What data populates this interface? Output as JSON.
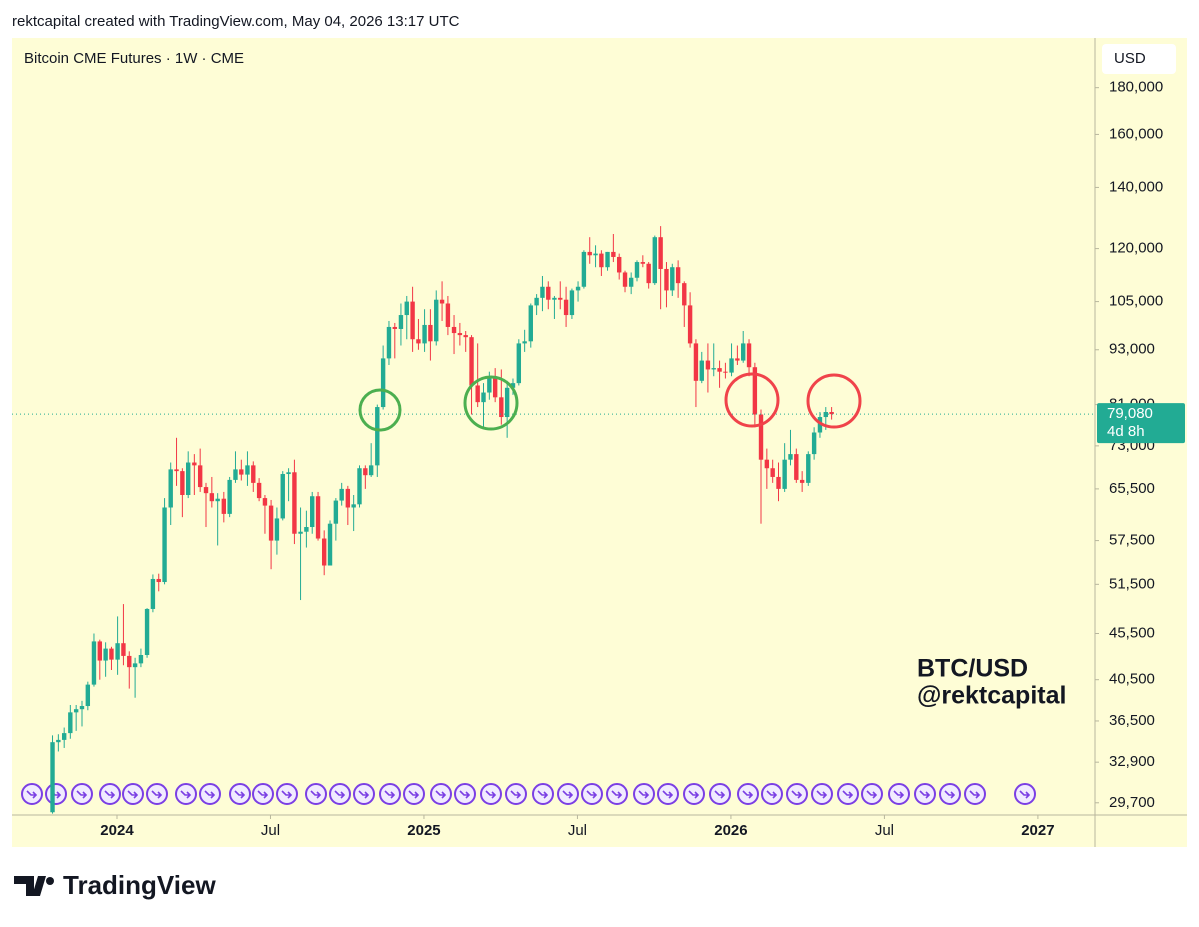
{
  "header": "rektcapital created with TradingView.com, May 04, 2026 13:17 UTC",
  "footer": "TradingView",
  "chart_data": {
    "type": "candlestick",
    "title": "Bitcoin CME Futures · 1W · CME",
    "currency": "USD",
    "annotation": [
      "BTC/USD",
      "@rektcapital"
    ],
    "last_price": {
      "value": 79080,
      "label": "79,080"
    },
    "countdown": "4d 8h",
    "up_color": "#22ab94",
    "down_color": "#f23645",
    "log_scale": true,
    "xlim": [
      2023.658,
      2027.186
    ],
    "ylim": [
      28800,
      204000
    ],
    "xticks": [
      2024,
      {
        "value": 2024.5,
        "label": "Jul"
      },
      2025,
      {
        "value": 2025.5,
        "label": "Jul"
      },
      2026,
      {
        "value": 2026.5,
        "label": "Jul"
      },
      2027
    ],
    "yticks": [
      {
        "value": 29700,
        "label": "29,700"
      },
      {
        "value": 32900,
        "label": "32,900"
      },
      {
        "value": 36500,
        "label": "36,500"
      },
      {
        "value": 40500,
        "label": "40,500"
      },
      {
        "value": 45500,
        "label": "45,500"
      },
      {
        "value": 51500,
        "label": "51,500"
      },
      {
        "value": 57500,
        "label": "57,500"
      },
      {
        "value": 65500,
        "label": "65,500"
      },
      {
        "value": 73000,
        "label": "73,000"
      },
      {
        "value": 81000,
        "label": "81,000"
      },
      {
        "value": 93000,
        "label": "93,000"
      },
      {
        "value": 105000,
        "label": "105,000"
      },
      {
        "value": 120000,
        "label": "120,000"
      },
      {
        "value": 140000,
        "label": "140,000"
      },
      {
        "value": 160000,
        "label": "160,000"
      },
      {
        "value": 180000,
        "label": "180,000"
      }
    ],
    "x": [
      2023.79,
      2023.809,
      2023.828,
      2023.848,
      2023.867,
      2023.886,
      2023.905,
      2023.925,
      2023.944,
      2023.963,
      2023.982,
      2024.002,
      2024.021,
      2024.04,
      2024.059,
      2024.078,
      2024.098,
      2024.117,
      2024.136,
      2024.155,
      2024.175,
      2024.194,
      2024.213,
      2024.232,
      2024.252,
      2024.271,
      2024.29,
      2024.309,
      2024.328,
      2024.348,
      2024.367,
      2024.386,
      2024.405,
      2024.425,
      2024.444,
      2024.463,
      2024.482,
      2024.502,
      2024.521,
      2024.54,
      2024.559,
      2024.578,
      2024.598,
      2024.617,
      2024.636,
      2024.655,
      2024.675,
      2024.694,
      2024.713,
      2024.732,
      2024.752,
      2024.771,
      2024.79,
      2024.809,
      2024.828,
      2024.848,
      2024.867,
      2024.886,
      2024.905,
      2024.925,
      2024.944,
      2024.963,
      2024.982,
      2025.002,
      2025.021,
      2025.04,
      2025.059,
      2025.078,
      2025.098,
      2025.117,
      2025.136,
      2025.155,
      2025.175,
      2025.194,
      2025.213,
      2025.232,
      2025.252,
      2025.271,
      2025.29,
      2025.309,
      2025.328,
      2025.348,
      2025.367,
      2025.386,
      2025.405,
      2025.425,
      2025.444,
      2025.463,
      2025.482,
      2025.502,
      2025.521,
      2025.54,
      2025.559,
      2025.578,
      2025.598,
      2025.617,
      2025.636,
      2025.655,
      2025.675,
      2025.694,
      2025.713,
      2025.732,
      2025.752,
      2025.771,
      2025.79,
      2025.809,
      2025.828,
      2025.848,
      2025.867,
      2025.886,
      2025.905,
      2025.925,
      2025.944,
      2025.963,
      2025.982,
      2026.002,
      2026.021,
      2026.04,
      2026.059,
      2026.078,
      2026.098,
      2026.117,
      2026.136,
      2026.155,
      2026.175,
      2026.194,
      2026.213,
      2026.232,
      2026.252,
      2026.271,
      2026.29,
      2026.309,
      2026.328
    ],
    "open": [
      29000,
      34600,
      34800,
      35400,
      37300,
      37600,
      37900,
      40000,
      44600,
      42500,
      43800,
      42600,
      44400,
      43000,
      41800,
      42200,
      43100,
      48400,
      52200,
      51800,
      62500,
      68800,
      68500,
      64500,
      70000,
      69500,
      65800,
      64800,
      63500,
      63900,
      61500,
      67000,
      68800,
      67900,
      69500,
      66500,
      64000,
      62800,
      57500,
      60800,
      68000,
      68300,
      58500,
      58800,
      59500,
      64300,
      57800,
      54000,
      60000,
      63600,
      65500,
      62500,
      63000,
      69000,
      67800,
      69500,
      80500,
      91000,
      98500,
      98000,
      101500,
      105000,
      95500,
      94500,
      99000,
      95000,
      105500,
      104500,
      98500,
      97000,
      96500,
      96000,
      85000,
      81500,
      83500,
      86500,
      82500,
      78500,
      84500,
      85500,
      94500,
      95000,
      104000,
      106000,
      109000,
      105500,
      106000,
      105500,
      101500,
      108000,
      109000,
      119000,
      118000,
      118500,
      114500,
      119000,
      117500,
      113000,
      109000,
      111500,
      116000,
      115500,
      110000,
      123500,
      114000,
      108000,
      114500,
      110000,
      104000,
      94500,
      86000,
      90500,
      88500,
      88800,
      88000,
      87800,
      91000,
      90500,
      94500,
      89000,
      79000,
      70500,
      69000,
      67500,
      65500,
      70500,
      71500,
      67000,
      66500,
      71500,
      75500,
      78500,
      79500
    ],
    "high": [
      35200,
      35300,
      35900,
      38000,
      38000,
      38400,
      40300,
      45500,
      44800,
      44500,
      44000,
      47500,
      49000,
      43500,
      42800,
      43800,
      48500,
      52800,
      52900,
      64000,
      70000,
      74500,
      69000,
      72000,
      71500,
      72500,
      66500,
      67500,
      64800,
      65000,
      67500,
      72000,
      70500,
      72000,
      70200,
      67300,
      64500,
      63700,
      62500,
      68500,
      69000,
      70500,
      62500,
      62000,
      65000,
      65000,
      59000,
      60500,
      64000,
      66500,
      66000,
      64500,
      69500,
      69500,
      73500,
      81000,
      94000,
      100000,
      99500,
      104500,
      106500,
      109000,
      100500,
      103000,
      103000,
      108000,
      110500,
      106500,
      101500,
      99500,
      97500,
      96500,
      94500,
      85500,
      88000,
      88800,
      88500,
      86000,
      86500,
      95500,
      97800,
      104500,
      107000,
      112000,
      110500,
      106500,
      110500,
      109000,
      108500,
      110500,
      119500,
      123500,
      121000,
      119500,
      119000,
      124500,
      118500,
      113500,
      113000,
      116500,
      118000,
      116000,
      124000,
      127000,
      116000,
      115500,
      116500,
      110500,
      107500,
      95500,
      92500,
      94500,
      94500,
      90500,
      90000,
      94500,
      94000,
      97500,
      95500,
      90000,
      80000,
      72500,
      70500,
      70000,
      73500,
      76000,
      72500,
      68500,
      72000,
      76500,
      79500,
      80500,
      80500
    ],
    "low": [
      28900,
      33800,
      34100,
      34900,
      35600,
      36000,
      37500,
      39800,
      40500,
      40800,
      41500,
      41000,
      42000,
      39600,
      38700,
      41800,
      42800,
      48000,
      50600,
      51500,
      59800,
      66000,
      61000,
      64000,
      64500,
      65000,
      59500,
      62500,
      56800,
      60200,
      61000,
      66500,
      66900,
      66000,
      65000,
      63500,
      58500,
      53500,
      55500,
      60500,
      63500,
      57000,
      49500,
      56500,
      58500,
      57500,
      52700,
      54000,
      57500,
      62800,
      59800,
      58900,
      62500,
      65500,
      67500,
      67500,
      80000,
      89500,
      91000,
      94000,
      95500,
      92500,
      93000,
      92500,
      90500,
      94000,
      100000,
      96500,
      92000,
      94000,
      92500,
      79000,
      80500,
      76500,
      82000,
      81500,
      77000,
      74500,
      83000,
      85000,
      92500,
      93500,
      101500,
      102500,
      103000,
      100500,
      103000,
      98500,
      100500,
      105000,
      108500,
      115500,
      114500,
      112000,
      113500,
      116000,
      111000,
      107500,
      107000,
      110500,
      114500,
      108500,
      109500,
      103000,
      103500,
      106500,
      106000,
      98500,
      93500,
      80500,
      85500,
      83500,
      87000,
      84500,
      86500,
      87000,
      89500,
      90000,
      87000,
      76500,
      60000,
      65500,
      66500,
      63500,
      65000,
      69500,
      66500,
      65000,
      66000,
      70500,
      74500,
      76000,
      78000
    ],
    "close": [
      34600,
      34800,
      35400,
      37300,
      37600,
      37900,
      40000,
      44600,
      42500,
      43800,
      42600,
      44400,
      43000,
      41800,
      42200,
      43100,
      48400,
      52200,
      51800,
      62500,
      68800,
      68500,
      64500,
      70000,
      69500,
      65800,
      64800,
      63500,
      63900,
      61500,
      67000,
      68800,
      67900,
      69500,
      66500,
      64000,
      62800,
      57500,
      60800,
      68000,
      68300,
      58500,
      58800,
      59500,
      64300,
      57800,
      54000,
      60000,
      63600,
      65500,
      62500,
      63000,
      69000,
      67800,
      69500,
      80500,
      91000,
      98500,
      98000,
      101500,
      105000,
      95500,
      94500,
      99000,
      95000,
      105500,
      104500,
      98500,
      97000,
      96500,
      96000,
      85000,
      81500,
      83500,
      86500,
      82500,
      78500,
      84500,
      85500,
      94500,
      95000,
      104000,
      106000,
      109000,
      105500,
      106000,
      105500,
      101500,
      108000,
      109000,
      119000,
      118000,
      118500,
      114500,
      119000,
      117500,
      113000,
      109000,
      111500,
      116000,
      115500,
      110000,
      123500,
      114000,
      108000,
      114500,
      110000,
      104000,
      94500,
      86000,
      90500,
      88500,
      88800,
      88000,
      87800,
      91000,
      90500,
      94500,
      89000,
      79000,
      70500,
      69000,
      67500,
      65500,
      70500,
      71500,
      67000,
      66500,
      71500,
      75500,
      78500,
      79500,
      79080
    ]
  }
}
